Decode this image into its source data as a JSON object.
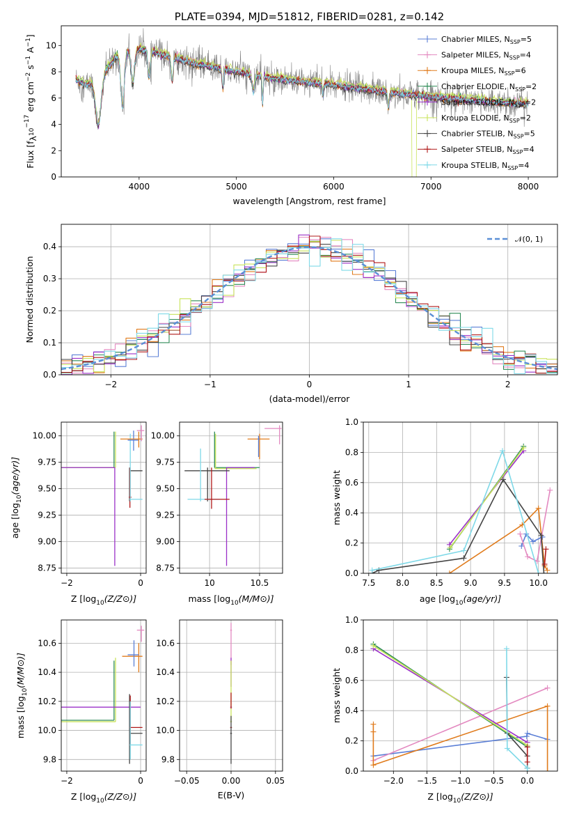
{
  "chart_data": [
    {
      "type": "line",
      "title": "PLATE=0394, MJD=51812, FIBERID=0281, z=0.142",
      "xlabel": "wavelength [Angstrom, rest frame]",
      "ylabel": "Flux [f",
      "xlim": [
        3200,
        8300
      ],
      "ylim": [
        0,
        11.5
      ],
      "xticks": [
        4000,
        5000,
        6000,
        7000,
        8000
      ],
      "yticks": [
        0,
        2,
        4,
        6,
        8,
        10
      ],
      "legend_position": "top-right",
      "series": [
        {
          "name": "Chabrier MILES, N",
          "n_ssp": "=5",
          "color": "#5b7fd6"
        },
        {
          "name": "Salpeter MILES, N",
          "n_ssp": "=4",
          "color": "#e389c0"
        },
        {
          "name": "Kroupa MILES, N",
          "n_ssp": "=6",
          "color": "#e07b1c"
        },
        {
          "name": "Chabrier ELODIE, N",
          "n_ssp": "=2",
          "color": "#2e8b57"
        },
        {
          "name": "Salpeter ELODIE, N",
          "n_ssp": "=2",
          "color": "#9b30c8"
        },
        {
          "name": "Kroupa ELODIE, N",
          "n_ssp": "=2",
          "color": "#c8e35a"
        },
        {
          "name": "Chabrier STELIB, N",
          "n_ssp": "=5",
          "color": "#444444"
        },
        {
          "name": "Salpeter STELIB, N",
          "n_ssp": "=4",
          "color": "#b01818"
        },
        {
          "name": "Kroupa STELIB, N",
          "n_ssp": "=4",
          "color": "#7fd9e8"
        }
      ],
      "observed_color": "#808080",
      "continuum": {
        "x": [
          3350,
          3450,
          3600,
          3750,
          3900,
          4000,
          4100,
          4300,
          4600,
          5000,
          5300,
          5600,
          6000,
          6300,
          6600,
          7000,
          7300,
          7600,
          7900
        ],
        "y": [
          7.4,
          7.0,
          7.5,
          9.0,
          9.6,
          9.7,
          9.6,
          9.2,
          8.6,
          8.0,
          7.6,
          7.3,
          7.0,
          6.7,
          6.4,
          6.1,
          5.9,
          5.7,
          5.6
        ]
      }
    },
    {
      "type": "line",
      "xlabel": "(data-model)/error",
      "ylabel": "Normed distribution",
      "xlim": [
        -2.5,
        2.5
      ],
      "ylim": [
        0,
        0.47
      ],
      "xticks": [
        -2,
        -1,
        0,
        1,
        2
      ],
      "yticks": [
        0.0,
        0.1,
        0.2,
        0.3,
        0.4
      ],
      "legend": {
        "label": "𝒩(0, 1)",
        "position": "top-right",
        "color": "#5b8fd6"
      }
    },
    {
      "type": "scatter",
      "xlabel": "Z [log",
      "ylabel": "age  [log",
      "xlim": [
        -2.15,
        0.15
      ],
      "ylim": [
        8.7,
        10.13
      ],
      "xticks": [
        -2,
        0
      ],
      "yticks": [
        8.75,
        9.0,
        9.25,
        9.5,
        9.75,
        10.0
      ]
    },
    {
      "type": "scatter",
      "xlabel": "mass [log",
      "xlim": [
        9.7,
        10.73
      ],
      "ylim": [
        8.7,
        10.13
      ],
      "xticks": [
        10.0,
        10.5
      ],
      "yticks": [
        8.75,
        9.0,
        9.25,
        9.5,
        9.75,
        10.0
      ]
    },
    {
      "type": "line",
      "xlabel": "age  [log",
      "ylabel": "mass weight",
      "xlim": [
        7.42,
        10.28
      ],
      "ylim": [
        0,
        1.0
      ],
      "xticks": [
        7.5,
        8.0,
        8.5,
        9.0,
        9.5,
        10.0
      ],
      "yticks": [
        0.0,
        0.2,
        0.4,
        0.6,
        0.8,
        1.0
      ],
      "series": [
        {
          "color": "#5b7fd6",
          "x": [
            9.75,
            9.82,
            9.92,
            10.06
          ],
          "y": [
            0.18,
            0.26,
            0.21,
            0.24
          ]
        },
        {
          "color": "#e389c0",
          "x": [
            9.73,
            9.84,
            9.98,
            10.17
          ],
          "y": [
            0.26,
            0.11,
            0.08,
            0.55
          ]
        },
        {
          "color": "#e07b1c",
          "x": [
            8.69,
            9.76,
            10.0,
            10.09,
            10.13
          ],
          "y": [
            0.0,
            0.32,
            0.43,
            0.05,
            0.02
          ]
        },
        {
          "color": "#2e8b57",
          "x": [
            8.69,
            9.78
          ],
          "y": [
            0.16,
            0.84
          ]
        },
        {
          "color": "#9b30c8",
          "x": [
            8.69,
            9.78
          ],
          "y": [
            0.19,
            0.81
          ]
        },
        {
          "color": "#c8e35a",
          "x": [
            8.7,
            9.78
          ],
          "y": [
            0.17,
            0.83
          ]
        },
        {
          "color": "#444444",
          "x": [
            7.55,
            7.65,
            8.9,
            9.48,
            10.04,
            10.08
          ],
          "y": [
            0.0,
            0.02,
            0.1,
            0.62,
            0.25,
            0.0
          ]
        },
        {
          "color": "#b01818",
          "x": [
            10.09,
            10.11
          ],
          "y": [
            0.06,
            0.16
          ]
        },
        {
          "color": "#7fd9e8",
          "x": [
            7.55,
            8.9,
            9.47,
            10.0
          ],
          "y": [
            0.02,
            0.15,
            0.81,
            0.0
          ]
        }
      ]
    },
    {
      "type": "scatter",
      "xlabel": "Z [log",
      "ylabel": "mass [log",
      "xlim": [
        -2.15,
        0.15
      ],
      "ylim": [
        9.72,
        10.76
      ],
      "xticks": [
        -2,
        0
      ],
      "yticks": [
        9.8,
        10.0,
        10.2,
        10.4,
        10.6
      ]
    },
    {
      "type": "scatter",
      "xlabel": "E(B-V)",
      "xlim": [
        -0.058,
        0.058
      ],
      "ylim": [
        9.72,
        10.76
      ],
      "xticks": [
        -0.05,
        0.0,
        0.05
      ],
      "yticks": [
        9.8,
        10.0,
        10.2,
        10.4,
        10.6
      ]
    },
    {
      "type": "line",
      "xlabel": "Z [log",
      "ylabel": "mass weight",
      "xlim": [
        -2.45,
        0.45
      ],
      "ylim": [
        0,
        1.0
      ],
      "xticks": [
        -2.0,
        -1.5,
        -1.0,
        -0.5,
        0.0
      ],
      "yticks": [
        0.0,
        0.2,
        0.4,
        0.6,
        0.8,
        1.0
      ],
      "series": [
        {
          "color": "#5b7fd6",
          "x": [
            -2.3,
            -0.01,
            0.0,
            0.3
          ],
          "y": [
            0.1,
            0.23,
            0.25,
            0.21
          ]
        },
        {
          "color": "#e389c0",
          "x": [
            -2.3,
            0.3
          ],
          "y": [
            0.07,
            0.55
          ]
        },
        {
          "color": "#e07b1c",
          "x": [
            -2.3,
            -2.3,
            -2.3,
            0.3,
            0.3
          ],
          "y": [
            0.31,
            0.26,
            0.04,
            0.43,
            0.0
          ]
        },
        {
          "color": "#2e8b57",
          "x": [
            -2.3,
            0.0
          ],
          "y": [
            0.84,
            0.16
          ]
        },
        {
          "color": "#9b30c8",
          "x": [
            -2.3,
            0.0
          ],
          "y": [
            0.81,
            0.19
          ]
        },
        {
          "color": "#c8e35a",
          "x": [
            -2.3,
            0.0
          ],
          "y": [
            0.83,
            0.17
          ]
        },
        {
          "color": "#444444",
          "x": [
            -0.31,
            -0.3,
            0.0,
            0.0
          ],
          "y": [
            0.62,
            0.25,
            0.1,
            0.02
          ]
        },
        {
          "color": "#b01818",
          "x": [
            0.0,
            0.0
          ],
          "y": [
            0.16,
            0.06
          ]
        },
        {
          "color": "#7fd9e8",
          "x": [
            -0.31,
            -0.3,
            0.0,
            0.0
          ],
          "y": [
            0.81,
            0.15,
            0.02,
            0.0
          ]
        }
      ]
    }
  ]
}
